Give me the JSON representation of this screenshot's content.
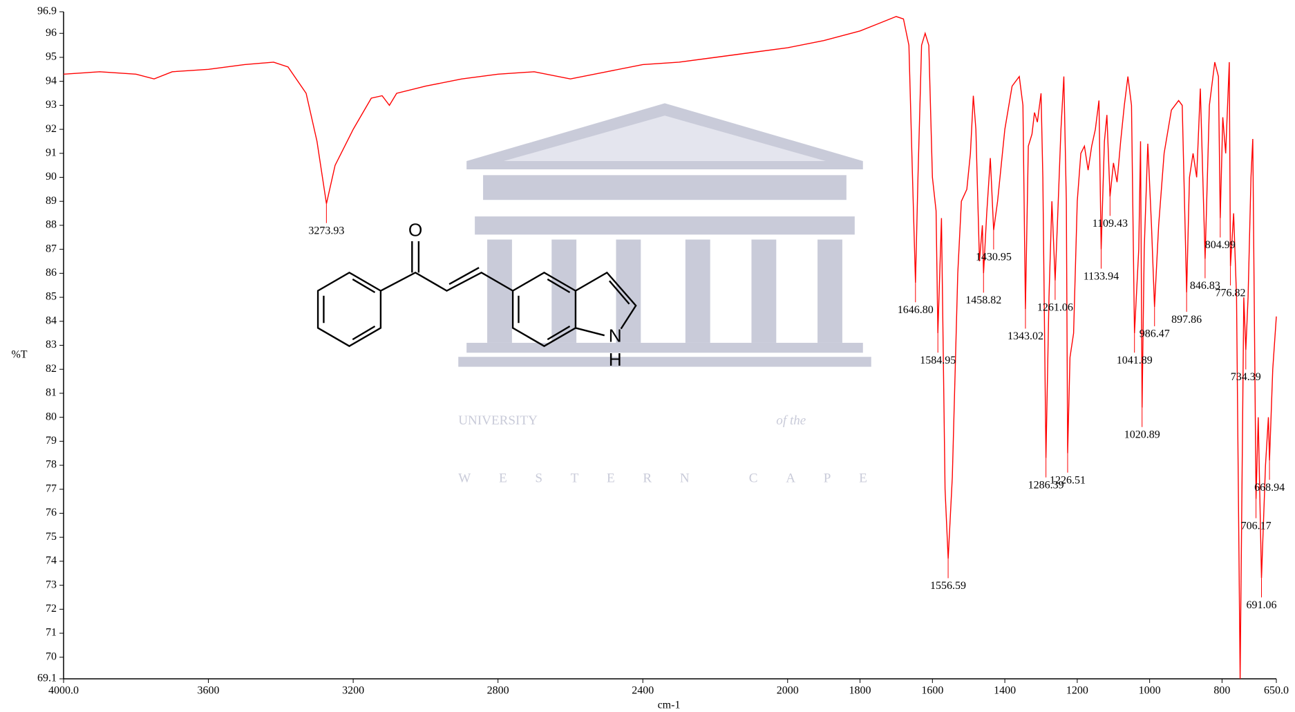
{
  "chart_data": {
    "type": "line",
    "xlabel": "cm-1",
    "ylabel": "%T",
    "xlim": [
      4000,
      650
    ],
    "ylim": [
      69.1,
      96.9
    ],
    "xticks": [
      {
        "value": 4000,
        "label": "4000.0"
      },
      3600,
      3200,
      2800,
      2400,
      2000,
      1800,
      1600,
      1400,
      1200,
      1000,
      800,
      {
        "value": 650,
        "label": "650.0"
      }
    ],
    "yticks": [
      69.1,
      70,
      71,
      72,
      73,
      74,
      75,
      76,
      77,
      78,
      79,
      80,
      81,
      82,
      83,
      84,
      85,
      86,
      87,
      88,
      89,
      90,
      91,
      92,
      93,
      94,
      95,
      96,
      96.9
    ],
    "x": [
      4000,
      3900,
      3800,
      3750,
      3700,
      3600,
      3500,
      3420,
      3380,
      3330,
      3300,
      3273.93,
      3250,
      3200,
      3150,
      3120,
      3100,
      3080,
      3000,
      2900,
      2800,
      2700,
      2600,
      2500,
      2400,
      2300,
      2200,
      2100,
      2000,
      1900,
      1800,
      1750,
      1700,
      1680,
      1665,
      1655,
      1646.8,
      1640,
      1630,
      1620,
      1610,
      1600,
      1590,
      1584.95,
      1575,
      1565,
      1556.59,
      1545,
      1530,
      1520,
      1505,
      1495,
      1487,
      1480,
      1470,
      1462,
      1458.82,
      1450,
      1440,
      1430.95,
      1420,
      1400,
      1380,
      1360,
      1350,
      1343.02,
      1335,
      1325,
      1318,
      1310,
      1300,
      1295,
      1286.39,
      1278,
      1270,
      1261.06,
      1255,
      1245,
      1237,
      1230,
      1226.51,
      1220,
      1210,
      1200,
      1190,
      1180,
      1170,
      1160,
      1150,
      1140,
      1133.94,
      1125,
      1118,
      1109.43,
      1100,
      1090,
      1080,
      1070,
      1060,
      1050,
      1041.89,
      1030,
      1025,
      1020.89,
      1015,
      1005,
      995,
      986.47,
      975,
      960,
      940,
      920,
      910,
      897.86,
      890,
      880,
      870,
      860,
      846.83,
      835,
      820,
      810,
      804.99,
      798,
      790,
      780,
      776.82,
      768,
      760,
      750,
      740,
      734.39,
      728,
      720,
      715,
      706.17,
      700,
      691.06,
      680,
      672,
      668.94,
      660,
      650
    ],
    "series": [
      {
        "color": "#ff0000",
        "values": [
          94.3,
          94.4,
          94.3,
          94.1,
          94.4,
          94.5,
          94.7,
          94.8,
          94.6,
          93.5,
          91.5,
          88.9,
          90.5,
          92.0,
          93.3,
          93.4,
          93.0,
          93.5,
          93.8,
          94.1,
          94.3,
          94.4,
          94.1,
          94.4,
          94.7,
          94.8,
          95.0,
          95.2,
          95.4,
          95.7,
          96.1,
          96.4,
          96.7,
          96.6,
          95.5,
          90,
          85.6,
          90,
          95.5,
          96.0,
          95.5,
          90,
          88.6,
          83.5,
          88.3,
          77,
          74.1,
          77.5,
          86,
          89,
          89.5,
          91,
          93.4,
          92,
          86.5,
          88,
          86,
          88.5,
          90.8,
          87.8,
          89,
          92,
          93.8,
          94.2,
          93,
          84.5,
          91.3,
          91.8,
          92.7,
          92.3,
          93.5,
          90,
          78.3,
          85,
          89,
          85.7,
          88,
          92,
          94.2,
          89,
          78.5,
          82.5,
          83.5,
          89,
          91,
          91.3,
          90.3,
          91.3,
          92,
          93.2,
          87,
          91.5,
          92.6,
          89.2,
          90.6,
          89.8,
          91.5,
          93,
          94.2,
          93,
          83.5,
          87,
          91.5,
          80.4,
          87,
          91.4,
          88,
          84.6,
          88,
          91,
          92.8,
          93.2,
          93,
          85.2,
          90,
          91,
          90,
          93.7,
          86.6,
          93,
          94.8,
          94.2,
          88.3,
          92.5,
          91,
          94.8,
          86.3,
          88.5,
          85,
          69.1,
          85,
          82.8,
          85,
          90,
          91.6,
          76.6,
          80,
          73.3,
          78,
          80,
          78.2,
          82,
          84.2
        ]
      }
    ],
    "peaks": [
      {
        "x": 3273.93,
        "label": "3273.93"
      },
      {
        "x": 1646.8,
        "label": "1646.80"
      },
      {
        "x": 1584.95,
        "label": "1584.95"
      },
      {
        "x": 1556.59,
        "label": "1556.59"
      },
      {
        "x": 1458.82,
        "label": "1458.82"
      },
      {
        "x": 1430.95,
        "label": "1430.95"
      },
      {
        "x": 1343.02,
        "label": "1343.02"
      },
      {
        "x": 1286.39,
        "label": "1286.39"
      },
      {
        "x": 1261.06,
        "label": "1261.06"
      },
      {
        "x": 1226.51,
        "label": "1226.51"
      },
      {
        "x": 1133.94,
        "label": "1133.94"
      },
      {
        "x": 1109.43,
        "label": "1109.43"
      },
      {
        "x": 1041.89,
        "label": "1041.89"
      },
      {
        "x": 1020.89,
        "label": "1020.89"
      },
      {
        "x": 986.47,
        "label": "986.47"
      },
      {
        "x": 897.86,
        "label": "897.86"
      },
      {
        "x": 846.83,
        "label": "846.83"
      },
      {
        "x": 804.99,
        "label": "804.99"
      },
      {
        "x": 776.82,
        "label": "776.82"
      },
      {
        "x": 734.39,
        "label": "734.39"
      },
      {
        "x": 706.17,
        "label": "706.17"
      },
      {
        "x": 691.06,
        "label": "691.06"
      },
      {
        "x": 668.94,
        "label": "668.94"
      }
    ],
    "structure_labels": [
      "O",
      "N",
      "H"
    ],
    "watermark": [
      "UNIVERSITY",
      "of the",
      "WESTERN CAPE"
    ]
  }
}
